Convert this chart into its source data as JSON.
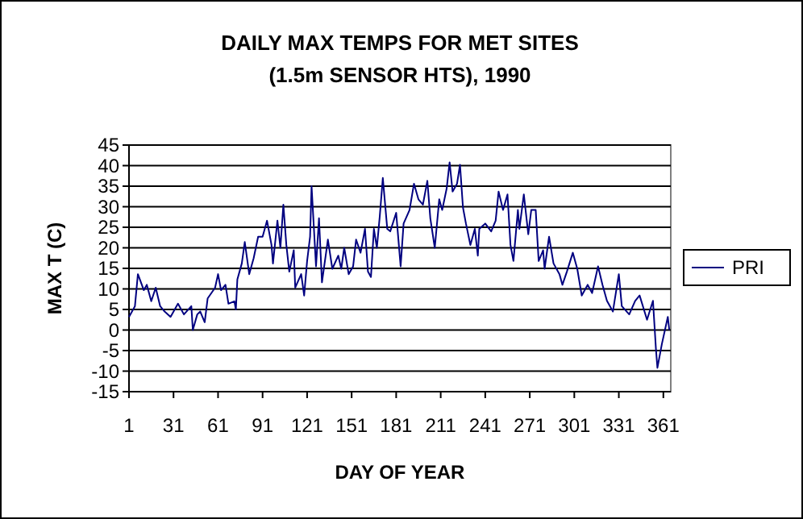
{
  "chart_data": {
    "type": "line",
    "title": "DAILY MAX TEMPS FOR MET SITES (1.5m SENSOR HTS), 1990",
    "xlabel": "DAY OF YEAR",
    "ylabel": "MAX T (C)",
    "xlim": [
      1,
      366
    ],
    "xticks": [
      1,
      31,
      61,
      91,
      121,
      151,
      181,
      211,
      241,
      271,
      301,
      331,
      361
    ],
    "ylim": [
      -15,
      45
    ],
    "yticks": [
      -15,
      -10,
      -5,
      0,
      5,
      10,
      15,
      20,
      25,
      30,
      35,
      40,
      45
    ],
    "grid": "y",
    "legend": "right",
    "marker": "none",
    "line_style": "solid",
    "series": [
      {
        "name": "PRI",
        "color": "#000080",
        "x": [
          1,
          5,
          7,
          11,
          13,
          16,
          19,
          22,
          25,
          29,
          34,
          38,
          43,
          44,
          47,
          49,
          52,
          54,
          59,
          61,
          63,
          66,
          68,
          72,
          73,
          74,
          77,
          79,
          82,
          85,
          88,
          91,
          94,
          97,
          98,
          101,
          103,
          105,
          107,
          109,
          112,
          113,
          117,
          119,
          121,
          123,
          124,
          127,
          129,
          131,
          135,
          138,
          142,
          144,
          146,
          149,
          152,
          154,
          157,
          160,
          162,
          164,
          166,
          168,
          170,
          172,
          175,
          177,
          181,
          184,
          186,
          190,
          193,
          196,
          199,
          202,
          204,
          207,
          210,
          212,
          215,
          217,
          219,
          222,
          224,
          226,
          228,
          231,
          234,
          236,
          237,
          241,
          245,
          248,
          250,
          253,
          256,
          258,
          260,
          263,
          264,
          267,
          270,
          272,
          275,
          277,
          280,
          281,
          284,
          287,
          291,
          293,
          296,
          300,
          303,
          306,
          310,
          313,
          317,
          320,
          323,
          327,
          331,
          333,
          338,
          342,
          345,
          350,
          354,
          356,
          357,
          360,
          364,
          365
        ],
        "values": [
          3.2,
          5.8,
          13.6,
          9.7,
          11,
          7,
          10.3,
          5.8,
          4.5,
          3.2,
          6.4,
          3.8,
          5.8,
          0,
          3.8,
          4.5,
          1.9,
          7.7,
          10.3,
          13.6,
          9.7,
          11,
          6.4,
          7,
          5,
          12.3,
          16.2,
          21.4,
          13.6,
          17.5,
          22.7,
          22.7,
          26.6,
          20.7,
          16.2,
          26.6,
          20,
          30.5,
          20.7,
          14.2,
          19.4,
          10.3,
          13.6,
          8.4,
          16.8,
          22.7,
          35,
          15.5,
          27.2,
          11.6,
          22,
          14.9,
          18.1,
          14.9,
          20,
          13.6,
          15.5,
          22,
          18.8,
          24.6,
          14.2,
          12.9,
          24.6,
          20,
          27.9,
          37,
          24.6,
          24,
          28.5,
          15.5,
          25.9,
          29.2,
          35.6,
          31.8,
          30.5,
          36.3,
          27.2,
          20,
          31.8,
          29.2,
          34.4,
          40.8,
          33.7,
          35.6,
          40.2,
          29.8,
          25.9,
          20.7,
          24.6,
          18.1,
          24.6,
          25.9,
          24,
          26.6,
          33.7,
          29.2,
          33,
          20.7,
          16.8,
          29.2,
          24.6,
          33,
          23.3,
          29.2,
          29.2,
          16.8,
          19.4,
          14.9,
          22.7,
          16.2,
          13.6,
          11,
          14.2,
          18.8,
          14.9,
          8.4,
          11,
          9,
          15.5,
          11,
          7.1,
          4.5,
          13.6,
          5.8,
          3.8,
          7.1,
          8.4,
          2.5,
          7.1,
          -4.6,
          -9.2,
          -3.4,
          3.2,
          0
        ]
      }
    ]
  }
}
